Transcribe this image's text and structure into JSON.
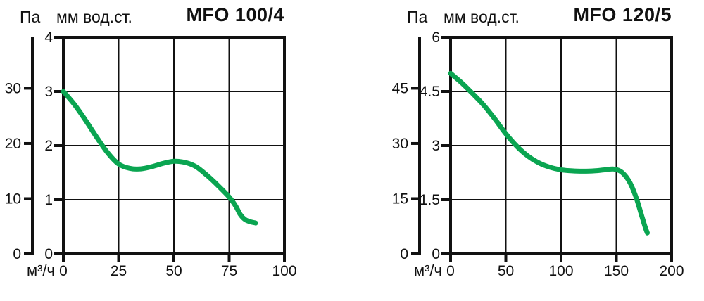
{
  "page": {
    "background_color": "#ffffff",
    "line_color": "#111111"
  },
  "chart_data": [
    {
      "type": "line",
      "title": "MFO 100/4",
      "pa_label": "Па",
      "mm_label": "мм вод.ст.",
      "x_label": "м³/ч",
      "x_ticks": [
        0,
        25,
        50,
        75,
        100
      ],
      "x_range": [
        0,
        100
      ],
      "mm_ticks": [
        0,
        1,
        2,
        3,
        4
      ],
      "mm_range": [
        0,
        4
      ],
      "pa_ticks": [
        0,
        10,
        20,
        30
      ],
      "grid": true,
      "legend": "none",
      "curve_color": "#0aa551",
      "series": [
        {
          "name": "MFO 100/4 pressure curve",
          "x_unit": "м³/ч",
          "y_unit": "мм вод.ст.",
          "points": [
            [
              0,
              3.0
            ],
            [
              5,
              2.76
            ],
            [
              10,
              2.47
            ],
            [
              15,
              2.16
            ],
            [
              20,
              1.87
            ],
            [
              25,
              1.66
            ],
            [
              30,
              1.58
            ],
            [
              35,
              1.57
            ],
            [
              40,
              1.61
            ],
            [
              45,
              1.67
            ],
            [
              50,
              1.71
            ],
            [
              55,
              1.69
            ],
            [
              60,
              1.61
            ],
            [
              65,
              1.45
            ],
            [
              70,
              1.26
            ],
            [
              75,
              1.05
            ],
            [
              78,
              0.88
            ],
            [
              80,
              0.73
            ],
            [
              82,
              0.64
            ],
            [
              84,
              0.6
            ],
            [
              87,
              0.57
            ]
          ]
        }
      ]
    },
    {
      "type": "line",
      "title": "MFO 120/5",
      "pa_label": "Па",
      "mm_label": "мм вод.ст.",
      "x_label": "м³/ч",
      "x_ticks": [
        0,
        50,
        100,
        150,
        200
      ],
      "x_range": [
        0,
        200
      ],
      "mm_ticks": [
        0,
        1.5,
        3,
        4.5,
        6
      ],
      "mm_range": [
        0,
        6
      ],
      "pa_ticks": [
        0,
        15,
        30,
        45
      ],
      "grid": true,
      "legend": "none",
      "curve_color": "#0aa551",
      "series": [
        {
          "name": "MFO 120/5 pressure curve",
          "x_unit": "м³/ч",
          "y_unit": "мм вод.ст.",
          "points": [
            [
              0,
              5.0
            ],
            [
              10,
              4.74
            ],
            [
              20,
              4.44
            ],
            [
              30,
              4.12
            ],
            [
              40,
              3.74
            ],
            [
              50,
              3.33
            ],
            [
              60,
              2.98
            ],
            [
              70,
              2.71
            ],
            [
              80,
              2.52
            ],
            [
              90,
              2.4
            ],
            [
              100,
              2.33
            ],
            [
              110,
              2.3
            ],
            [
              120,
              2.29
            ],
            [
              130,
              2.3
            ],
            [
              140,
              2.33
            ],
            [
              148,
              2.35
            ],
            [
              155,
              2.26
            ],
            [
              162,
              1.99
            ],
            [
              168,
              1.55
            ],
            [
              173,
              1.05
            ],
            [
              176,
              0.75
            ],
            [
              178,
              0.58
            ]
          ]
        }
      ]
    }
  ]
}
